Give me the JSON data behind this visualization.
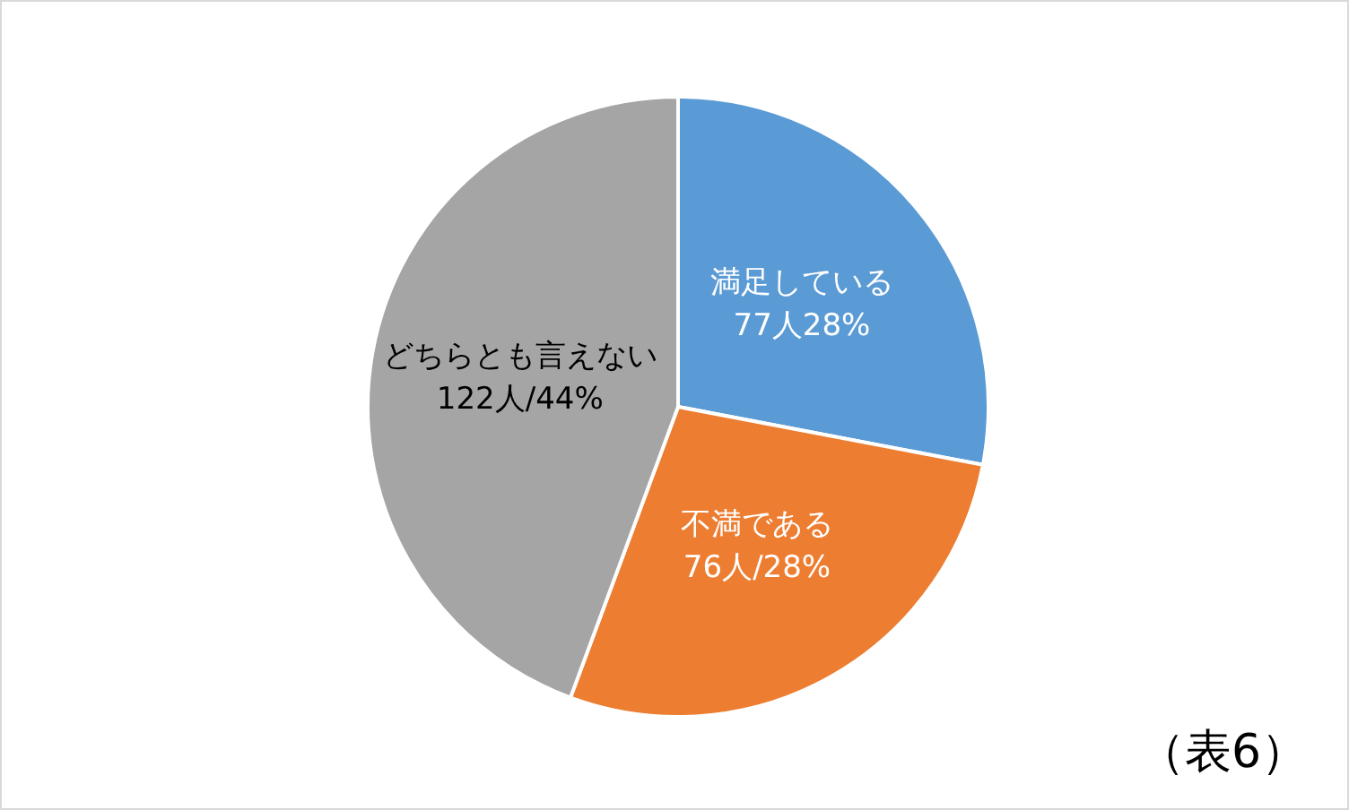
{
  "chart_data": {
    "type": "pie",
    "categories": [
      "満足している",
      "不満である",
      "どちらとも言えない"
    ],
    "values": [
      77,
      76,
      122
    ],
    "value_labels": [
      "77人28%",
      "76人/28%",
      "122人/44%"
    ],
    "colors": [
      "#5b9bd5",
      "#ed7d31",
      "#a5a5a5"
    ],
    "annotations": [
      "（表6）"
    ],
    "legend": false
  }
}
